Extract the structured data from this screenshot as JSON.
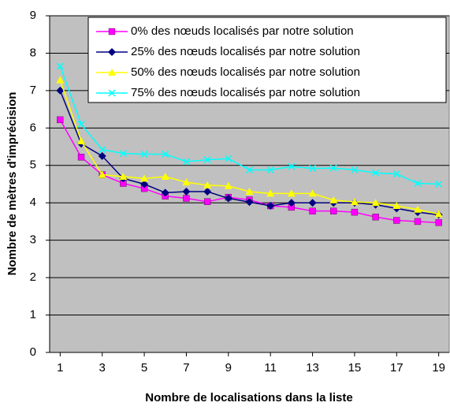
{
  "chart_data": {
    "type": "line",
    "x_label": "Nombre de localisations dans la liste",
    "y_label": "Nombre de mètres d'imprécision",
    "x": [
      1,
      2,
      3,
      4,
      5,
      6,
      7,
      8,
      9,
      10,
      11,
      12,
      13,
      14,
      15,
      16,
      17,
      18,
      19
    ],
    "xlim": [
      0.5,
      19.5
    ],
    "xticks": [
      1,
      3,
      5,
      7,
      9,
      11,
      13,
      15,
      17,
      19
    ],
    "ylim": [
      0,
      9
    ],
    "yticks": [
      0,
      1,
      2,
      3,
      4,
      5,
      6,
      7,
      8,
      9
    ],
    "grid": true,
    "legend": "upper right",
    "series": [
      {
        "name": "0% des nœuds localisés par notre solution",
        "color": "#ff00ff",
        "marker": "square",
        "values": [
          6.22,
          5.22,
          4.75,
          4.52,
          4.38,
          4.18,
          4.12,
          4.03,
          4.15,
          4.08,
          3.92,
          3.88,
          3.78,
          3.78,
          3.75,
          3.62,
          3.53,
          3.5,
          3.47
        ]
      },
      {
        "name": "25% des nœuds localisés par notre solution",
        "color": "#000080",
        "marker": "diamond",
        "values": [
          7.0,
          5.58,
          5.25,
          4.65,
          4.5,
          4.27,
          4.3,
          4.3,
          4.12,
          4.02,
          3.92,
          4.0,
          4.0,
          4.0,
          4.0,
          3.95,
          3.85,
          3.75,
          3.68
        ]
      },
      {
        "name": "50% des nœuds localisés par notre solution",
        "color": "#ffff00",
        "marker": "triangle",
        "values": [
          7.28,
          5.65,
          4.75,
          4.7,
          4.65,
          4.7,
          4.55,
          4.47,
          4.45,
          4.3,
          4.25,
          4.25,
          4.25,
          4.07,
          4.02,
          4.0,
          3.92,
          3.82,
          3.7
        ]
      },
      {
        "name": "75% des nœuds localisés par notre solution",
        "color": "#00ffff",
        "marker": "x",
        "values": [
          7.65,
          6.1,
          5.42,
          5.32,
          5.3,
          5.3,
          5.1,
          5.15,
          5.18,
          4.88,
          4.88,
          4.97,
          4.92,
          4.93,
          4.88,
          4.8,
          4.77,
          4.52,
          4.5
        ]
      }
    ]
  }
}
